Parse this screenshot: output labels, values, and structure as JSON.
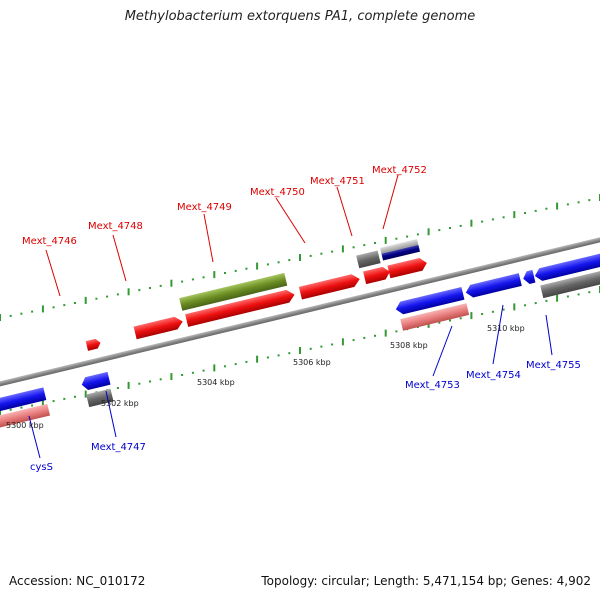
{
  "title": "Methylobacterium extorquens PA1, complete genome",
  "footer": {
    "accession": "Accession: NC_010172",
    "summary": "Topology: circular; Length: 5,471,154 bp; Genes: 4,902"
  },
  "colors": {
    "forward_cds": "#ee1111",
    "reverse_cds": "#1111dd",
    "forward_label": "#dd0000",
    "reverse_label": "#0000cc",
    "forward_rna": "#6b8e23",
    "reverse_rna": "#e97d7d",
    "pseudo": "#666666",
    "backbone": "#888888",
    "tick": "#339933"
  },
  "ticks": [
    "5300 kbp",
    "5302 kbp",
    "5304 kbp",
    "5306 kbp",
    "5308 kbp",
    "5310 kbp"
  ],
  "labels": {
    "forward": [
      "Mext_4746",
      "Mext_4748",
      "Mext_4749",
      "Mext_4750",
      "Mext_4751",
      "Mext_4752"
    ],
    "reverse": [
      "cysS",
      "Mext_4747",
      "Mext_4753",
      "Mext_4754",
      "Mext_4755"
    ]
  }
}
